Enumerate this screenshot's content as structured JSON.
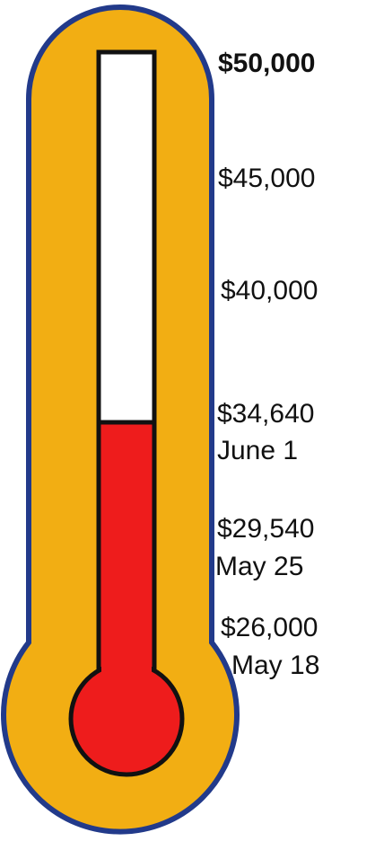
{
  "labels": [
    {
      "amount": "$50,000"
    },
    {
      "amount": "$45,000"
    },
    {
      "amount": "$40,000"
    },
    {
      "amount": "$34,640",
      "date": "June 1"
    },
    {
      "amount": "$29,540",
      "date": "May 25"
    },
    {
      "amount": "$26,000",
      "date": "May 18"
    }
  ]
}
